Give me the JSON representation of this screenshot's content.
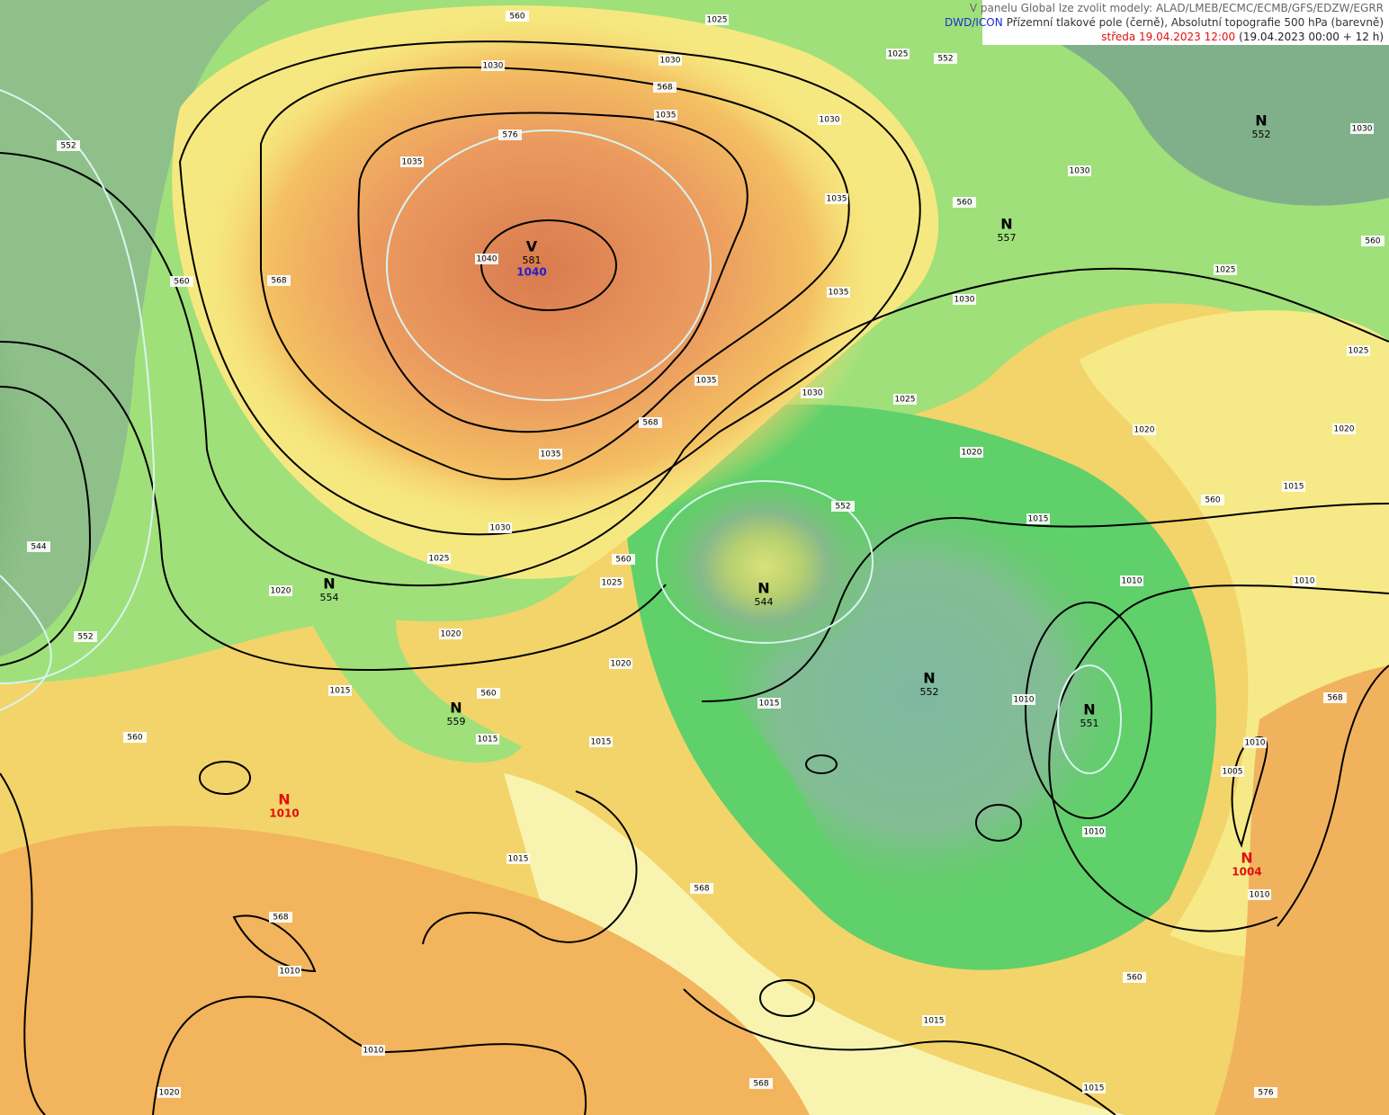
{
  "header": {
    "models": "V panelu Global lze zvolit modely: ALAD/LMEB/ECMC/ECMB/GFS/EDZW/EGRR",
    "source": "DWD/ICON",
    "description": "Přízemní tlakové pole (černě), Absolutní topografie 500 hPa (barevně)",
    "date": "středa 19.04.2023 12:00",
    "run": "(19.04.2023 00:00 + 12 h)"
  },
  "centers": [
    {
      "type": "V",
      "height": "581",
      "pressure": "1040"
    },
    {
      "type": "N",
      "height": "552"
    },
    {
      "type": "N",
      "height": "557"
    },
    {
      "type": "N",
      "height": "554"
    },
    {
      "type": "N",
      "height": "544"
    },
    {
      "type": "N",
      "height": "559"
    },
    {
      "type": "N",
      "height": "552"
    },
    {
      "type": "N",
      "height": "551"
    },
    {
      "type": "N",
      "pressure": "1010"
    },
    {
      "type": "N",
      "pressure": "1004"
    }
  ],
  "isobar_labels": [
    "1030",
    "1030",
    "1025",
    "1035",
    "1030",
    "1035",
    "1040",
    "1035",
    "1035",
    "1030",
    "1025",
    "1030",
    "1025",
    "1035",
    "1030",
    "1025",
    "1020",
    "1020",
    "1020",
    "1015",
    "1015",
    "1010",
    "1010",
    "1025",
    "1030",
    "1035",
    "1030",
    "1025",
    "1025",
    "1020",
    "1020",
    "1020",
    "1015",
    "1015",
    "1015",
    "1015",
    "1010",
    "1005",
    "1010",
    "1015",
    "1010",
    "1010",
    "1015",
    "1010",
    "1020",
    "1015",
    "1010"
  ],
  "height_labels": [
    "560",
    "552",
    "568",
    "576",
    "560",
    "560",
    "568",
    "552",
    "560",
    "560",
    "560",
    "560",
    "552",
    "544",
    "552",
    "560",
    "568",
    "568",
    "568",
    "568",
    "560",
    "568",
    "576"
  ]
}
